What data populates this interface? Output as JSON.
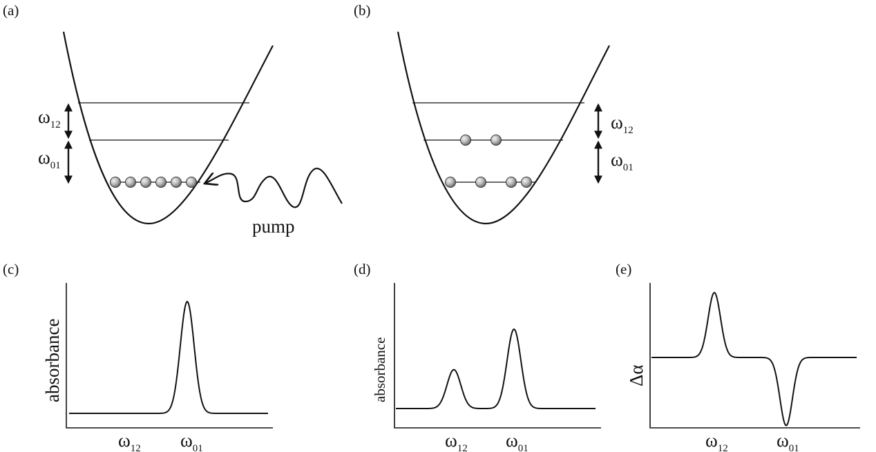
{
  "panels": {
    "a": {
      "label": "(a)",
      "w12": {
        "sym": "ω",
        "sub": "12"
      },
      "w01": {
        "sym": "ω",
        "sub": "01"
      },
      "pump": "pump"
    },
    "b": {
      "label": "(b)",
      "w12": {
        "sym": "ω",
        "sub": "12"
      },
      "w01": {
        "sym": "ω",
        "sub": "01"
      }
    },
    "c": {
      "label": "(c)",
      "ylabel": "absorbance",
      "xticks": [
        {
          "sym": "ω",
          "sub": "12"
        },
        {
          "sym": "ω",
          "sub": "01"
        }
      ]
    },
    "d": {
      "label": "(d)",
      "ylabel": "absorbance",
      "xticks": [
        {
          "sym": "ω",
          "sub": "12"
        },
        {
          "sym": "ω",
          "sub": "01"
        }
      ]
    },
    "e": {
      "label": "(e)",
      "ylabel": "Δα",
      "xticks": [
        {
          "sym": "ω",
          "sub": "12"
        },
        {
          "sym": "ω",
          "sub": "01"
        }
      ]
    }
  },
  "chart_data": [
    {
      "type": "line",
      "panel": "c",
      "ylabel": "absorbance",
      "x_ticks": [
        "ω12",
        "ω01"
      ],
      "series": [
        {
          "peaks": [
            {
              "at": "ω01",
              "relative_height": 1.0
            }
          ]
        }
      ]
    },
    {
      "type": "line",
      "panel": "d",
      "ylabel": "absorbance",
      "x_ticks": [
        "ω12",
        "ω01"
      ],
      "series": [
        {
          "peaks": [
            {
              "at": "ω12",
              "relative_height": 0.49
            },
            {
              "at": "ω01",
              "relative_height": 1.0
            }
          ]
        }
      ]
    },
    {
      "type": "line",
      "panel": "e",
      "ylabel": "Δα",
      "x_ticks": [
        "ω12",
        "ω01"
      ],
      "series": [
        {
          "peaks": [
            {
              "at": "ω12",
              "relative_height": 1.0
            },
            {
              "at": "ω01",
              "relative_height": -1.05
            }
          ]
        }
      ]
    }
  ]
}
